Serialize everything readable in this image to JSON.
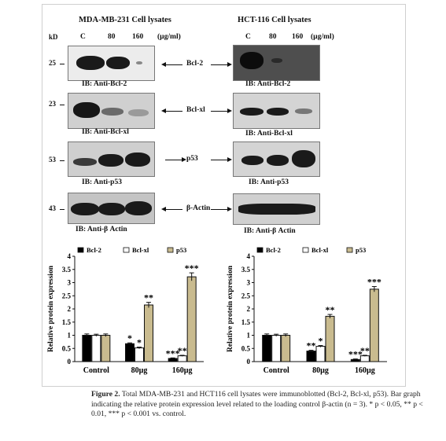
{
  "left_panel": {
    "title": "MDA-MB-231 Cell lysates",
    "kd_label": "kD",
    "lanes": [
      "C",
      "80",
      "160"
    ],
    "unit": "(µg/ml)",
    "blots": [
      {
        "kd": "25",
        "protein": "Bcl-2",
        "ib": "IB: Anti-Bcl-2"
      },
      {
        "kd": "23",
        "protein": "Bcl-xl",
        "ib": "IB: Anti-Bcl-xl"
      },
      {
        "kd": "53",
        "protein": "p53",
        "ib": "IB: Anti-p53"
      },
      {
        "kd": "43",
        "protein": "β-Actin",
        "ib": "IB: Anti-β Actin"
      }
    ]
  },
  "right_panel": {
    "title": "HCT-116 Cell lysates",
    "lanes": [
      "C",
      "80",
      "160"
    ],
    "unit": "(µg/ml)",
    "blots": [
      {
        "ib": "IB: Anti-Bcl-2"
      },
      {
        "ib": "IB: Anti-Bcl-xl"
      },
      {
        "ib": "IB: Anti-p53"
      },
      {
        "ib": "IB: Anti-β Actin"
      }
    ]
  },
  "chart_data": [
    {
      "type": "bar",
      "categories": [
        "Control",
        "80µg",
        "160µg"
      ],
      "ylabel": "Relative protein expression",
      "ylim": [
        0,
        4
      ],
      "yticks": [
        "0",
        "0.5",
        "1",
        "1.5",
        "2",
        "2.5",
        "3",
        "3.5",
        "4"
      ],
      "series": [
        {
          "name": "Bcl-2",
          "color": "#000000",
          "values": [
            1.0,
            0.68,
            0.12
          ],
          "errors": [
            0.05,
            0.03,
            0.02
          ],
          "sig": [
            "",
            "*",
            "***"
          ]
        },
        {
          "name": "Bcl-xl",
          "color": "#ffffff",
          "values": [
            1.0,
            0.52,
            0.22
          ],
          "errors": [
            0.04,
            0.03,
            0.02
          ],
          "sig": [
            "",
            "*",
            "**"
          ]
        },
        {
          "name": "p53",
          "color": "#c9bb8f",
          "values": [
            1.0,
            2.15,
            3.22
          ],
          "errors": [
            0.05,
            0.1,
            0.15
          ],
          "sig": [
            "",
            "**",
            "***"
          ]
        }
      ],
      "legend": "top"
    },
    {
      "type": "bar",
      "categories": [
        "Control",
        "80µg",
        "160µg"
      ],
      "ylabel": "Relative protein expression",
      "ylim": [
        0,
        4
      ],
      "yticks": [
        "0",
        "0.5",
        "1",
        "1.5",
        "2",
        "2.5",
        "3",
        "3.5",
        "4"
      ],
      "series": [
        {
          "name": "Bcl-2",
          "color": "#000000",
          "values": [
            1.0,
            0.4,
            0.08
          ],
          "errors": [
            0.05,
            0.03,
            0.02
          ],
          "sig": [
            "",
            "**",
            "***"
          ]
        },
        {
          "name": "Bcl-xl",
          "color": "#ffffff",
          "values": [
            1.0,
            0.58,
            0.22
          ],
          "errors": [
            0.04,
            0.03,
            0.02
          ],
          "sig": [
            "",
            "*",
            "**"
          ]
        },
        {
          "name": "p53",
          "color": "#c9bb8f",
          "values": [
            1.0,
            1.72,
            2.75
          ],
          "errors": [
            0.05,
            0.07,
            0.1
          ],
          "sig": [
            "",
            "**",
            "***"
          ]
        }
      ],
      "legend": "top"
    }
  ],
  "caption": {
    "label": "Figure 2.",
    "text": " Total MDA-MB-231 and HCT116 cell lysates were immunoblotted (Bcl-2, Bcl-xl, p53). Bar graph indicating the relative protein expression level related to the loading control β-actin (n = 3). * p < 0.05, ** p < 0.01, *** p < 0.001 vs. control."
  }
}
